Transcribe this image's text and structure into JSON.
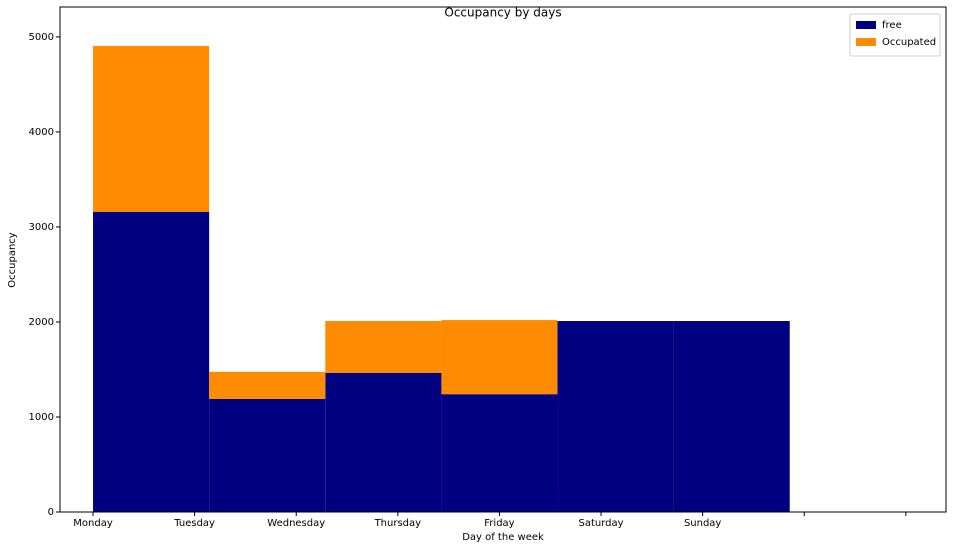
{
  "chart_data": {
    "type": "histogram",
    "title": "Occupancy by days",
    "x_label": "Day of the week",
    "y_label": "Occupancy",
    "categories": [
      "Monday",
      "Tuesday",
      "Wednesday",
      "Thursday",
      "Friday",
      "Saturday",
      "Sunday",
      null,
      null
    ],
    "xticks": [
      0,
      1,
      2,
      3,
      4,
      5,
      6,
      7,
      8
    ],
    "xlim": [
      -0.325,
      8.395
    ],
    "bins": [
      0,
      1.143,
      2.286,
      3.429,
      4.571,
      5.714,
      6.857
    ],
    "series": [
      {
        "name": "free",
        "color": "#000080",
        "values": [
          3160,
          1190,
          1465,
          1240,
          2010,
          2010
        ]
      },
      {
        "name": "Occupated",
        "color": "#ff8c00",
        "values": [
          1745,
          285,
          545,
          780,
          0,
          0
        ]
      }
    ],
    "stacked": true,
    "ylim": [
      0,
      5315
    ],
    "yticks": [
      0,
      1000,
      2000,
      3000,
      4000,
      5000
    ],
    "legend": "upper right"
  }
}
